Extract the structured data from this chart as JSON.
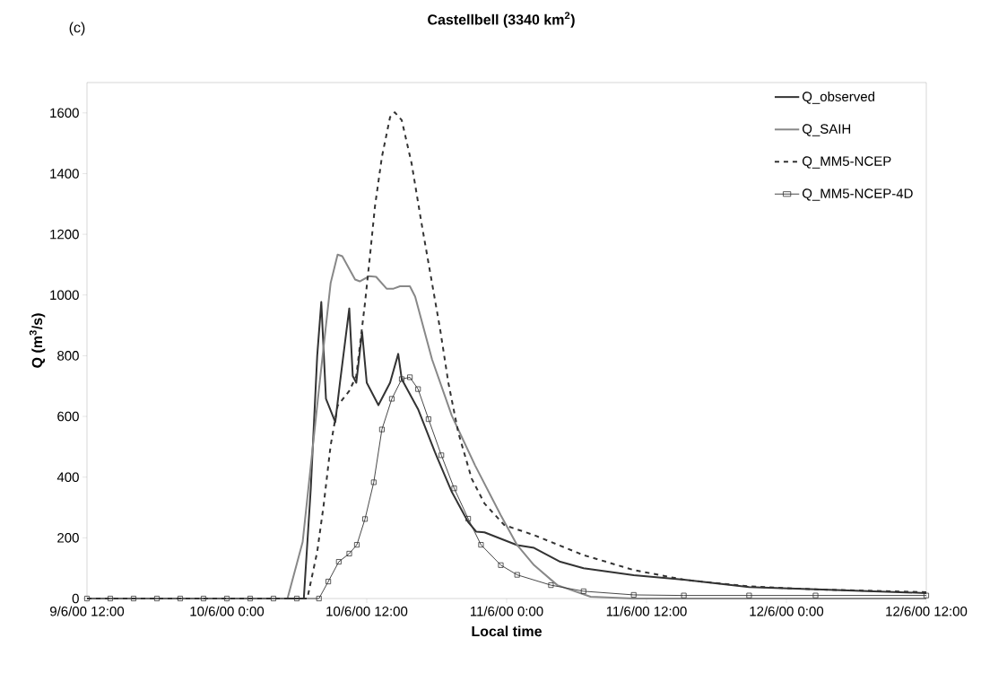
{
  "chart_data": {
    "type": "line",
    "title": "Castellbell (3340 km$^{2}$)",
    "xlabel": "Local time",
    "ylabel": "Q (m$^{3}$/s)",
    "annotations": [
      "(c)"
    ],
    "legend": "top right",
    "xlim": [
      "2000-06-09T12:00",
      "2000-06-12T12:00"
    ],
    "xticks": [
      {
        "value": "2000-06-09T12:00",
        "label": "9/6/00 12:00"
      },
      {
        "value": "2000-06-10T00:00",
        "label": "10/6/00 0:00"
      },
      {
        "value": "2000-06-10T12:00",
        "label": "10/6/00 12:00"
      },
      {
        "value": "2000-06-11T00:00",
        "label": "11/6/00 0:00"
      },
      {
        "value": "2000-06-11T12:00",
        "label": "11/6/00 12:00"
      },
      {
        "value": "2000-06-12T00:00",
        "label": "12/6/00 0:00"
      },
      {
        "value": "2000-06-12T12:00",
        "label": "12/6/00 12:00"
      }
    ],
    "ylim": [
      0,
      1700
    ],
    "yticks": [
      0,
      200,
      400,
      600,
      800,
      1000,
      1200,
      1400,
      1600
    ],
    "series": [
      {
        "name": "Q_observed",
        "color": "#333333",
        "line_style": "solid",
        "marker": "none",
        "x": [
          "2000-06-09T12:00",
          "2000-06-10T06:36",
          "2000-06-10T07:12",
          "2000-06-10T07:45",
          "2000-06-10T08:06",
          "2000-06-10T08:30",
          "2000-06-10T09:18",
          "2000-06-10T09:42",
          "2000-06-10T10:30",
          "2000-06-10T10:48",
          "2000-06-10T11:06",
          "2000-06-10T11:36",
          "2000-06-10T12:00",
          "2000-06-10T13:00",
          "2000-06-10T14:00",
          "2000-06-10T14:42",
          "2000-06-10T15:00",
          "2000-06-10T16:24",
          "2000-06-10T17:51",
          "2000-06-10T19:18",
          "2000-06-10T20:42",
          "2000-06-10T21:24",
          "2000-06-10T22:06",
          "2000-06-11T00:54",
          "2000-06-11T02:21",
          "2000-06-11T04:36",
          "2000-06-11T06:36",
          "2000-06-11T10:54",
          "2000-06-11T15:12",
          "2000-06-11T20:48",
          "2000-06-12T02:30",
          "2000-06-12T12:00"
        ],
        "values": [
          0,
          0,
          363,
          800,
          977,
          658,
          581,
          711,
          956,
          733,
          711,
          878,
          711,
          637,
          711,
          806,
          723,
          624,
          482,
          351,
          252,
          220,
          218,
          176,
          167,
          121,
          100,
          77,
          62,
          38,
          30,
          18
        ]
      },
      {
        "name": "Q_SAIH",
        "color": "#888888",
        "line_style": "solid",
        "marker": "none",
        "x": [
          "2000-06-09T12:00",
          "2000-06-10T05:12",
          "2000-06-10T06:30",
          "2000-06-10T07:54",
          "2000-06-10T08:54",
          "2000-06-10T09:30",
          "2000-06-10T09:54",
          "2000-06-10T11:00",
          "2000-06-10T11:24",
          "2000-06-10T12:12",
          "2000-06-10T12:48",
          "2000-06-10T13:42",
          "2000-06-10T14:18",
          "2000-06-10T14:51",
          "2000-06-10T15:42",
          "2000-06-10T16:09",
          "2000-06-10T17:36",
          "2000-06-10T19:18",
          "2000-06-10T21:18",
          "2000-06-10T23:30",
          "2000-06-11T00:54",
          "2000-06-11T02:21",
          "2000-06-11T04:21",
          "2000-06-11T07:12",
          "2000-06-11T10:54",
          "2000-06-12T12:00"
        ],
        "values": [
          0,
          0,
          186,
          690,
          1039,
          1133,
          1128,
          1051,
          1045,
          1062,
          1060,
          1021,
          1021,
          1029,
          1029,
          995,
          788,
          602,
          438,
          274,
          176,
          110,
          44,
          6,
          0,
          0
        ]
      },
      {
        "name": "Q_MM5-NCEP",
        "color": "#333333",
        "line_style": "dashed",
        "marker": "none",
        "x": [
          "2000-06-09T12:00",
          "2000-06-10T06:54",
          "2000-06-10T07:45",
          "2000-06-10T08:18",
          "2000-06-10T08:54",
          "2000-06-10T09:30",
          "2000-06-10T10:30",
          "2000-06-10T11:06",
          "2000-06-10T11:51",
          "2000-06-10T12:18",
          "2000-06-10T12:42",
          "2000-06-10T13:18",
          "2000-06-10T14:00",
          "2000-06-10T14:24",
          "2000-06-10T15:00",
          "2000-06-10T15:51",
          "2000-06-10T16:42",
          "2000-06-10T17:36",
          "2000-06-10T18:18",
          "2000-06-10T19:00",
          "2000-06-10T19:51",
          "2000-06-10T21:00",
          "2000-06-10T22:06",
          "2000-06-10T23:48",
          "2000-06-11T02:21",
          "2000-06-11T06:36",
          "2000-06-11T10:54",
          "2000-06-11T15:12",
          "2000-06-11T20:48",
          "2000-06-12T02:30",
          "2000-06-12T12:00"
        ],
        "values": [
          0,
          0,
          154,
          307,
          504,
          635,
          684,
          733,
          974,
          1138,
          1291,
          1455,
          1586,
          1602,
          1576,
          1433,
          1236,
          1039,
          886,
          711,
          547,
          395,
          313,
          242,
          209,
          143,
          94,
          62,
          40,
          30,
          21
        ]
      },
      {
        "name": "Q_MM5-NCEP-4D",
        "color": "#333333",
        "line_style": "solid",
        "marker": "square",
        "x": [
          "2000-06-09T12:00",
          "2000-06-09T14:00",
          "2000-06-09T16:00",
          "2000-06-09T18:00",
          "2000-06-09T20:00",
          "2000-06-09T22:00",
          "2000-06-10T00:00",
          "2000-06-10T02:00",
          "2000-06-10T04:00",
          "2000-06-10T06:00",
          "2000-06-10T07:54",
          "2000-06-10T08:42",
          "2000-06-10T09:36",
          "2000-06-10T10:30",
          "2000-06-10T11:09",
          "2000-06-10T11:51",
          "2000-06-10T12:36",
          "2000-06-10T13:18",
          "2000-06-10T14:09",
          "2000-06-10T15:00",
          "2000-06-10T15:42",
          "2000-06-10T16:24",
          "2000-06-10T17:18",
          "2000-06-10T18:24",
          "2000-06-10T19:30",
          "2000-06-10T20:42",
          "2000-06-10T21:48",
          "2000-06-10T23:30",
          "2000-06-11T00:54",
          "2000-06-11T03:48",
          "2000-06-11T06:36",
          "2000-06-11T10:54",
          "2000-06-11T15:12",
          "2000-06-11T20:48",
          "2000-06-12T02:30",
          "2000-06-12T12:00"
        ],
        "values": [
          0,
          0,
          0,
          0,
          0,
          0,
          0,
          0,
          0,
          0,
          0,
          56,
          121,
          148,
          177,
          262,
          383,
          557,
          658,
          723,
          729,
          690,
          591,
          472,
          363,
          263,
          177,
          110,
          78,
          44,
          24,
          12,
          10,
          10,
          10,
          10
        ]
      }
    ]
  }
}
